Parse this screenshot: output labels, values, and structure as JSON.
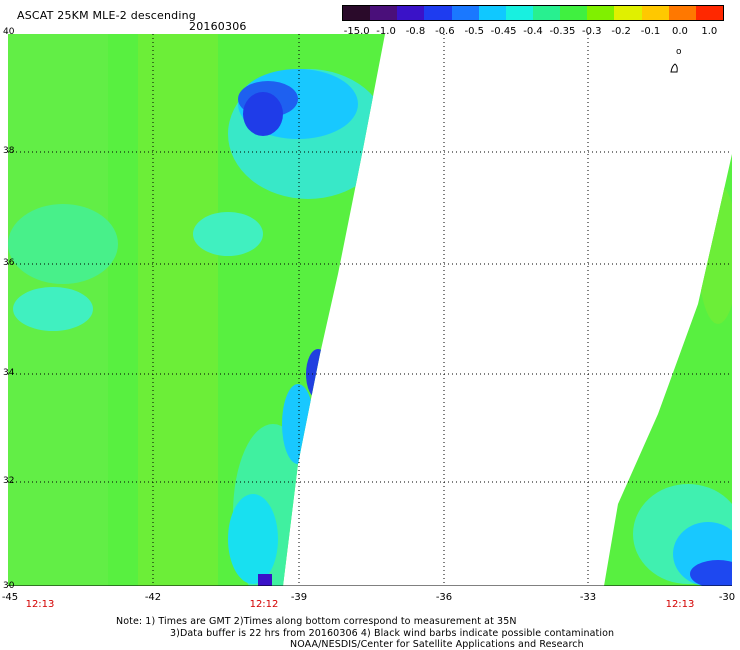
{
  "header": {
    "title": "ASCAT 25KM MLE-2 descending",
    "date": "20160306"
  },
  "colorbar": {
    "labels": [
      "-15.0",
      "-1.0",
      "-0.8",
      "-0.6",
      "-0.5",
      "-0.45",
      "-0.4",
      "-0.35",
      "-0.3",
      "-0.2",
      "-0.1",
      "0.0",
      "1.0"
    ],
    "colors": [
      "#2a0a2a",
      "#4a0f7a",
      "#3a12c8",
      "#1e3cf0",
      "#1a78ff",
      "#10c8ff",
      "#18f0e0",
      "#28f090",
      "#40f040",
      "#80f000",
      "#e0f000",
      "#ffc800",
      "#ff7800",
      "#ff2800"
    ]
  },
  "map": {
    "lat_labels": [
      "40",
      "38",
      "36",
      "34",
      "32",
      "30"
    ],
    "lon_labels": [
      "-45",
      "-42",
      "-39",
      "-36",
      "-33",
      "-30"
    ],
    "swath_times": [
      "12:13",
      "12:12",
      "12:13"
    ],
    "small_symbol": "o"
  },
  "notes": {
    "line1": "Note: 1) Times are GMT 2)Times along bottom correspond to measurement at 35N",
    "line2": "3)Data buffer is 22 hrs from 20160306 4) Black wind barbs indicate possible contamination",
    "line3": "NOAA/NESDIS/Center for Satellite Applications and Research"
  }
}
